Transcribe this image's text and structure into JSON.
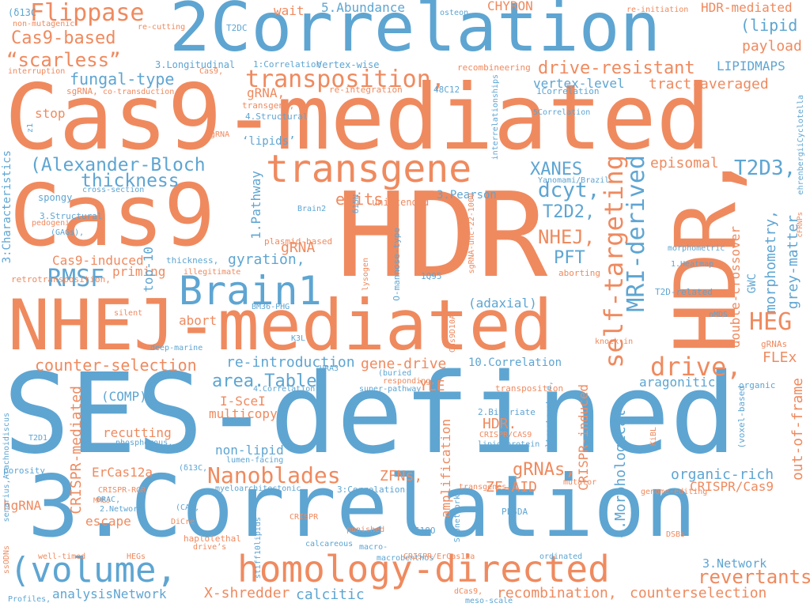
{
  "palette": {
    "blue": "#5ea5d2",
    "orange": "#ef8a5f"
  },
  "words": [
    {
      "text": "SES-defined",
      "color": "blue"
    },
    {
      "text": "Cas9-mediated",
      "color": "orange"
    },
    {
      "text": "3.Correlation",
      "color": "blue"
    },
    {
      "text": "2Correlation",
      "color": "blue"
    },
    {
      "text": "HDR",
      "color": "orange"
    },
    {
      "text": "Cas9",
      "color": "orange"
    },
    {
      "text": "NHEJ-mediated",
      "color": "orange"
    },
    {
      "text": "HDR,",
      "color": "orange"
    },
    {
      "text": "homology-directed",
      "color": "orange"
    },
    {
      "text": "(volume,",
      "color": "blue"
    },
    {
      "text": "Brain1",
      "color": "blue"
    },
    {
      "text": "transgene",
      "color": "orange"
    },
    {
      "text": "transposition,",
      "color": "orange"
    },
    {
      "text": "self-targeting",
      "color": "orange"
    },
    {
      "text": "MRI-derived",
      "color": "blue"
    },
    {
      "text": "Flippase",
      "color": "orange"
    },
    {
      "text": "“scarless”",
      "color": "orange"
    },
    {
      "text": "Cas9-based",
      "color": "orange"
    },
    {
      "text": "Nanoblades",
      "color": "orange"
    },
    {
      "text": "(Alexander-Bloch",
      "color": "blue"
    },
    {
      "text": "thickness",
      "color": "blue"
    },
    {
      "text": "RMSF",
      "color": "blue"
    },
    {
      "text": "drive-resistant",
      "color": "orange"
    },
    {
      "text": "fungal-type",
      "color": "blue"
    },
    {
      "text": "counter-selection",
      "color": "orange"
    },
    {
      "text": "re-introduction",
      "color": "blue"
    },
    {
      "text": "gene-drive",
      "color": "orange"
    },
    {
      "text": "area.Table",
      "color": "blue"
    },
    {
      "text": "drive,",
      "color": "orange"
    },
    {
      "text": "HEG",
      "color": "orange"
    },
    {
      "text": "NHEJ,",
      "color": "orange"
    },
    {
      "text": "T2D3,",
      "color": "blue"
    },
    {
      "text": "T2D2,",
      "color": "blue"
    },
    {
      "text": "XANES",
      "color": "blue"
    },
    {
      "text": "dcyt,",
      "color": "blue"
    },
    {
      "text": "PFT",
      "color": "blue"
    },
    {
      "text": "episomal",
      "color": "orange"
    },
    {
      "text": "revertants",
      "color": "orange"
    },
    {
      "text": "counterselection",
      "color": "orange"
    },
    {
      "text": "recombination,",
      "color": "orange"
    },
    {
      "text": "X-shredder",
      "color": "orange"
    },
    {
      "text": "calcitic",
      "color": "blue"
    },
    {
      "text": "analysisNetwork",
      "color": "blue"
    },
    {
      "text": "3.Network",
      "color": "blue"
    },
    {
      "text": "organic-rich",
      "color": "blue"
    },
    {
      "text": "CRISPR/Cas9",
      "color": "orange"
    },
    {
      "text": "ZF-AID",
      "color": "orange"
    },
    {
      "text": "ZFNs,",
      "color": "orange"
    },
    {
      "text": "gRNAs,",
      "color": "orange"
    },
    {
      "text": "aragonitic",
      "color": "blue"
    },
    {
      "text": "I-SceI",
      "color": "orange"
    },
    {
      "text": "multicopy",
      "color": "orange"
    },
    {
      "text": "recutting",
      "color": "orange"
    },
    {
      "text": "non-lipid",
      "color": "blue"
    },
    {
      "text": "ErCas12a",
      "color": "orange"
    },
    {
      "text": "escape",
      "color": "orange"
    },
    {
      "text": "hgRNA",
      "color": "orange"
    },
    {
      "text": "gRNA",
      "color": "orange"
    },
    {
      "text": "gRNA,",
      "color": "orange"
    },
    {
      "text": "Cas9-induced",
      "color": "orange"
    },
    {
      "text": "priming",
      "color": "orange"
    },
    {
      "text": "abort",
      "color": "orange"
    },
    {
      "text": "gyration,",
      "color": "blue"
    },
    {
      "text": "edits",
      "color": "orange"
    },
    {
      "text": "YLE",
      "color": "orange"
    },
    {
      "text": "HDR.",
      "color": "orange"
    },
    {
      "text": "(COMP)",
      "color": "blue"
    },
    {
      "text": "(adaxial)",
      "color": "blue"
    },
    {
      "text": "FLEx",
      "color": "orange"
    },
    {
      "text": "payload",
      "color": "orange"
    },
    {
      "text": "LIPIDMAPS",
      "color": "blue"
    },
    {
      "text": "(lipid",
      "color": "blue"
    },
    {
      "text": "HDR-mediated",
      "color": "orange"
    },
    {
      "text": "5.Abundance",
      "color": "blue"
    },
    {
      "text": "wait",
      "color": "orange"
    },
    {
      "text": "CHYRON",
      "color": "orange"
    },
    {
      "text": "tract-averaged",
      "color": "orange"
    },
    {
      "text": "vertex-level",
      "color": "blue"
    },
    {
      "text": "stop",
      "color": "orange"
    },
    {
      "text": "‘lipids’",
      "color": "blue"
    },
    {
      "text": "1.Pathway",
      "color": "blue"
    },
    {
      "text": "top-10",
      "color": "blue"
    },
    {
      "text": "morphometry,",
      "color": "blue"
    },
    {
      "text": "grey-matter",
      "color": "blue"
    },
    {
      "text": "double-crossover",
      "color": "orange"
    },
    {
      "text": "GWC",
      "color": "blue"
    },
    {
      "text": "4.Morphological",
      "color": "blue"
    },
    {
      "text": "amplification",
      "color": "orange"
    },
    {
      "text": "CRISPR-induced",
      "color": "orange"
    },
    {
      "text": "CRISPR-mediated",
      "color": "orange"
    },
    {
      "text": "out-of-frame",
      "color": "orange"
    },
    {
      "text": "3.Pearson",
      "color": "blue"
    },
    {
      "text": "unintended",
      "color": "orange"
    },
    {
      "text": "plasmid-based",
      "color": "orange"
    },
    {
      "text": "Brain2",
      "color": "blue"
    },
    {
      "text": "Yanomami/Brazil",
      "color": "blue"
    },
    {
      "text": "Cas9,",
      "color": "orange"
    },
    {
      "text": "sgRNA,",
      "color": "orange"
    },
    {
      "text": "co-transduction",
      "color": "orange"
    },
    {
      "text": "3.Longitudinal",
      "color": "blue"
    },
    {
      "text": "1:Correlation",
      "color": "blue"
    },
    {
      "text": "Vertex-wise",
      "color": "blue"
    },
    {
      "text": "T2DC",
      "color": "blue"
    },
    {
      "text": "re-cutting",
      "color": "orange"
    },
    {
      "text": "non-mutagenic",
      "color": "orange"
    },
    {
      "text": "(δ13C",
      "color": "blue"
    },
    {
      "text": "osteon",
      "color": "blue"
    },
    {
      "text": "re-initiation",
      "color": "orange"
    },
    {
      "text": "interruption",
      "color": "orange"
    },
    {
      "text": "recombineering",
      "color": "orange"
    },
    {
      "text": "re-integration",
      "color": "orange"
    },
    {
      "text": "transgene,",
      "color": "orange"
    },
    {
      "text": "4.Structural",
      "color": "blue"
    },
    {
      "text": "48C12",
      "color": "blue"
    },
    {
      "text": "1Correlation",
      "color": "blue"
    },
    {
      "text": "5Correlation",
      "color": "blue"
    },
    {
      "text": "interrelationships",
      "color": "blue"
    },
    {
      "text": "sgRNA",
      "color": "orange"
    },
    {
      "text": "z1",
      "color": "blue"
    },
    {
      "text": "3:Characteristics",
      "color": "blue"
    },
    {
      "text": "spongy",
      "color": "blue"
    },
    {
      "text": "3.Structural",
      "color": "blue"
    },
    {
      "text": "pedogenic",
      "color": "orange"
    },
    {
      "text": "(GAGs),",
      "color": "blue"
    },
    {
      "text": "cross-section",
      "color": "blue"
    },
    {
      "text": "retrotransposition,",
      "color": "orange"
    },
    {
      "text": "thickness,",
      "color": "blue"
    },
    {
      "text": "illegitimate",
      "color": "orange"
    },
    {
      "text": "δ15N",
      "color": "blue"
    },
    {
      "text": "1Q95",
      "color": "blue"
    },
    {
      "text": "lysogen",
      "color": "orange"
    },
    {
      "text": "O-mannose-type",
      "color": "blue"
    },
    {
      "text": "sgRNA-unc-22-1000",
      "color": "orange"
    },
    {
      "text": "aborting",
      "color": "orange"
    },
    {
      "text": "1.Heatmap",
      "color": "blue"
    },
    {
      "text": "morphometric",
      "color": "blue"
    },
    {
      "text": "T2D-related",
      "color": "blue"
    },
    {
      "text": "nMDS",
      "color": "blue"
    },
    {
      "text": "knock-in",
      "color": "orange"
    },
    {
      "text": "ehrenbergiiCyclotella",
      "color": "blue"
    },
    {
      "text": "cFRNPs",
      "color": "orange"
    },
    {
      "text": "gRNAs",
      "color": "orange"
    },
    {
      "text": "organic",
      "color": "blue"
    },
    {
      "text": "BM36-PHG",
      "color": "blue"
    },
    {
      "text": "silent",
      "color": "orange"
    },
    {
      "text": "K3L",
      "color": "blue"
    },
    {
      "text": "deep-marine",
      "color": "blue"
    },
    {
      "text": "Cas9D10A",
      "color": "orange"
    },
    {
      "text": "URA3",
      "color": "blue"
    },
    {
      "text": "4.Correlation",
      "color": "blue"
    },
    {
      "text": "(buried",
      "color": "blue"
    },
    {
      "text": "responding,",
      "color": "orange"
    },
    {
      "text": "super-pathway",
      "color": "blue"
    },
    {
      "text": "10.Correlation",
      "color": "blue"
    },
    {
      "text": "transposition",
      "color": "orange"
    },
    {
      "text": "senarius,Arachnoidiscus",
      "color": "blue"
    },
    {
      "text": "T2D1,",
      "color": "blue"
    },
    {
      "text": "phosphorous,",
      "color": "blue"
    },
    {
      "text": "porosity",
      "color": "blue"
    },
    {
      "text": "(δ13C,",
      "color": "blue"
    },
    {
      "text": "lumen-facing",
      "color": "blue"
    },
    {
      "text": "2.Bivariate",
      "color": "blue"
    },
    {
      "text": "CRISPR/CAS9",
      "color": "orange"
    },
    {
      "text": "lipid-protein",
      "color": "blue"
    },
    {
      "text": "ultrastructure,",
      "color": "blue"
    },
    {
      "text": "KiBL",
      "color": "orange"
    },
    {
      "text": "(voxel-based",
      "color": "blue"
    },
    {
      "text": "CRISPR-RGR",
      "color": "orange"
    },
    {
      "text": "MMEJ",
      "color": "orange"
    },
    {
      "text": "ORAC,",
      "color": "blue"
    },
    {
      "text": "2.Network",
      "color": "blue"
    },
    {
      "text": "(CAD,",
      "color": "blue"
    },
    {
      "text": "DiCre",
      "color": "orange"
    },
    {
      "text": "myeloarchitectonic",
      "color": "blue"
    },
    {
      "text": "3:Correlation",
      "color": "blue"
    },
    {
      "text": "transgenes,",
      "color": "orange"
    },
    {
      "text": "mutator",
      "color": "orange"
    },
    {
      "text": "genome-editing",
      "color": "orange"
    },
    {
      "text": "PLSDA",
      "color": "blue"
    },
    {
      "text": "Subnetworks",
      "color": "blue"
    },
    {
      "text": "CRISPR",
      "color": "orange"
    },
    {
      "text": "δ18O",
      "color": "blue"
    },
    {
      "text": "punished",
      "color": "orange"
    },
    {
      "text": "calcareous",
      "color": "blue"
    },
    {
      "text": "macro-",
      "color": "blue"
    },
    {
      "text": "macrobenthos",
      "color": "blue"
    },
    {
      "text": "stiff10lipids",
      "color": "blue"
    },
    {
      "text": "haplolethal",
      "color": "orange"
    },
    {
      "text": "drive’s",
      "color": "orange"
    },
    {
      "text": "HEGs",
      "color": "orange"
    },
    {
      "text": "well-timed",
      "color": "orange"
    },
    {
      "text": "ssODNs",
      "color": "orange"
    },
    {
      "text": "Profiles,",
      "color": "blue"
    },
    {
      "text": "CRISPR/ErCas12a",
      "color": "orange"
    },
    {
      "text": "ordinated",
      "color": "blue"
    },
    {
      "text": "DSBs",
      "color": "orange"
    },
    {
      "text": "dCas9,",
      "color": "orange"
    },
    {
      "text": "meso-scale",
      "color": "blue"
    }
  ]
}
